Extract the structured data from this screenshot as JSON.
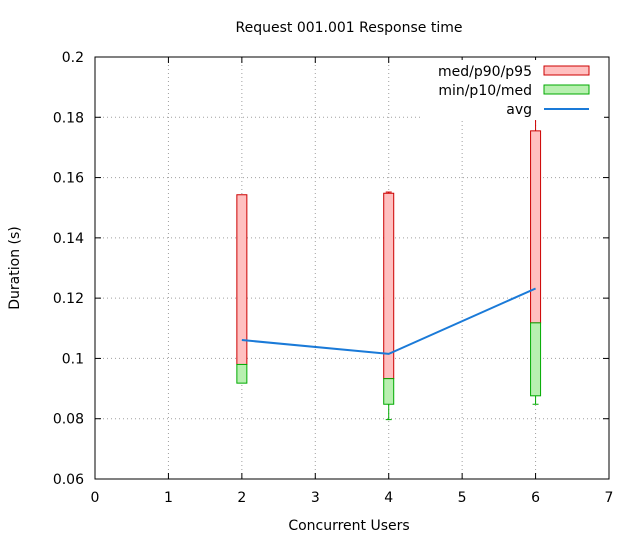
{
  "chart_data": {
    "type": "candlestick",
    "title": "Request 001.001 Response time",
    "xlabel": "Concurrent Users",
    "ylabel": "Duration (s)",
    "xlim": [
      0,
      7
    ],
    "ylim": [
      0.06,
      0.2
    ],
    "x_ticks": [
      "0",
      "1",
      "2",
      "3",
      "4",
      "5",
      "6",
      "7"
    ],
    "y_ticks": [
      "0.06",
      "0.08",
      "0.1",
      "0.12",
      "0.14",
      "0.16",
      "0.18",
      "0.2"
    ],
    "grid": true,
    "legend_position": "top-right",
    "series": [
      {
        "name": "med/p90/p95",
        "color": "#cc0000",
        "fill": "#ffc0c0",
        "points": [
          {
            "x": 2,
            "med": 0.098,
            "p90": 0.1543,
            "p95": 0.1543
          },
          {
            "x": 4,
            "med": 0.0933,
            "p90": 0.1548,
            "p95": 0.1552
          },
          {
            "x": 6,
            "med": 0.1118,
            "p90": 0.1755,
            "p95": 0.186
          }
        ]
      },
      {
        "name": "min/p10/med",
        "color": "#00aa00",
        "fill": "#b8f0b0",
        "points": [
          {
            "x": 2,
            "min": 0.0918,
            "p10": 0.0918,
            "med": 0.098
          },
          {
            "x": 4,
            "min": 0.0797,
            "p10": 0.0848,
            "med": 0.0933
          },
          {
            "x": 6,
            "min": 0.0848,
            "p10": 0.0876,
            "med": 0.1118
          }
        ]
      },
      {
        "name": "avg",
        "color": "#1a7ad8",
        "points": [
          {
            "x": 2,
            "y": 0.1061
          },
          {
            "x": 4,
            "y": 0.1015
          },
          {
            "x": 6,
            "y": 0.1232
          }
        ]
      }
    ]
  }
}
